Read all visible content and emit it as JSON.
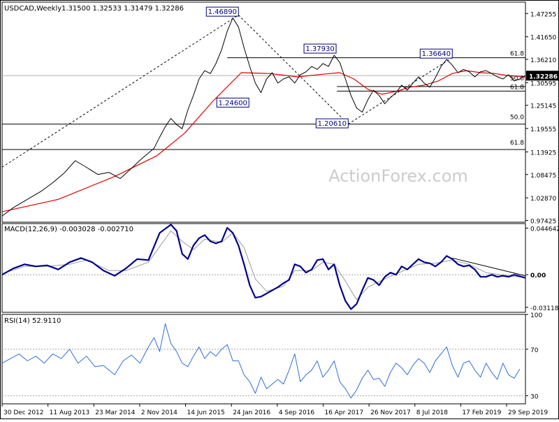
{
  "chart_data": {
    "type": "line",
    "symbol_header": "USDCAD,Weekly",
    "ohlc_header": "1.31500 1.32533 1.31479 1.32286",
    "watermark": "ActionForex.com",
    "x_ticks": [
      "30 Dec 2012",
      "11 Aug 2013",
      "23 Mar 2014",
      "2 Nov 2014",
      "14 Jun 2015",
      "24 Jan 2016",
      "4 Sep 2016",
      "16 Apr 2017",
      "26 Nov 2017",
      "8 Jul 2018",
      "17 Feb 2019",
      "29 Sep 2019"
    ],
    "price_panel": {
      "ylim": [
        0.97,
        1.5
      ],
      "y_ticks": [
        "1.47255",
        "1.41650",
        "1.36210",
        "1.30595",
        "1.25145",
        "1.19555",
        "1.13925",
        "1.08475",
        "1.02870",
        "0.97425"
      ],
      "last_price": "1.32286",
      "close_path": [
        [
          0,
          0.985
        ],
        [
          4,
          1.005
        ],
        [
          9,
          1.025
        ],
        [
          14,
          1.045
        ],
        [
          18,
          1.065
        ],
        [
          22,
          1.088
        ],
        [
          26,
          1.118
        ],
        [
          30,
          1.102
        ],
        [
          34,
          1.085
        ],
        [
          38,
          1.09
        ],
        [
          42,
          1.075
        ],
        [
          46,
          1.1
        ],
        [
          50,
          1.125
        ],
        [
          54,
          1.148
        ],
        [
          56,
          1.175
        ],
        [
          58,
          1.2
        ],
        [
          60,
          1.22
        ],
        [
          62,
          1.205
        ],
        [
          64,
          1.195
        ],
        [
          66,
          1.24
        ],
        [
          68,
          1.275
        ],
        [
          70,
          1.315
        ],
        [
          72,
          1.335
        ],
        [
          74,
          1.328
        ],
        [
          76,
          1.352
        ],
        [
          78,
          1.385
        ],
        [
          80,
          1.43
        ],
        [
          82,
          1.462
        ],
        [
          84,
          1.44
        ],
        [
          86,
          1.39
        ],
        [
          88,
          1.345
        ],
        [
          90,
          1.305
        ],
        [
          92,
          1.282
        ],
        [
          94,
          1.315
        ],
        [
          96,
          1.33
        ],
        [
          98,
          1.305
        ],
        [
          100,
          1.315
        ],
        [
          102,
          1.32
        ],
        [
          104,
          1.305
        ],
        [
          106,
          1.325
        ],
        [
          108,
          1.332
        ],
        [
          110,
          1.345
        ],
        [
          112,
          1.338
        ],
        [
          114,
          1.352
        ],
        [
          116,
          1.345
        ],
        [
          118,
          1.372
        ],
        [
          120,
          1.355
        ],
        [
          122,
          1.315
        ],
        [
          124,
          1.275
        ],
        [
          126,
          1.245
        ],
        [
          128,
          1.235
        ],
        [
          130,
          1.265
        ],
        [
          132,
          1.288
        ],
        [
          134,
          1.275
        ],
        [
          136,
          1.255
        ],
        [
          138,
          1.27
        ],
        [
          140,
          1.282
        ],
        [
          142,
          1.3
        ],
        [
          144,
          1.288
        ],
        [
          146,
          1.305
        ],
        [
          148,
          1.32
        ],
        [
          150,
          1.305
        ],
        [
          152,
          1.295
        ],
        [
          154,
          1.318
        ],
        [
          156,
          1.345
        ],
        [
          158,
          1.362
        ],
        [
          160,
          1.348
        ],
        [
          162,
          1.33
        ],
        [
          164,
          1.338
        ],
        [
          166,
          1.332
        ],
        [
          168,
          1.32
        ],
        [
          170,
          1.332
        ],
        [
          172,
          1.335
        ],
        [
          174,
          1.328
        ],
        [
          176,
          1.32
        ],
        [
          178,
          1.315
        ],
        [
          180,
          1.325
        ],
        [
          182,
          1.31
        ],
        [
          184,
          1.315
        ],
        [
          186,
          1.323
        ]
      ],
      "ma_path": [
        [
          0,
          0.995
        ],
        [
          20,
          1.025
        ],
        [
          40,
          1.08
        ],
        [
          55,
          1.13
        ],
        [
          65,
          1.185
        ],
        [
          75,
          1.262
        ],
        [
          85,
          1.33
        ],
        [
          95,
          1.328
        ],
        [
          105,
          1.32
        ],
        [
          115,
          1.327
        ],
        [
          120,
          1.33
        ],
        [
          125,
          1.315
        ],
        [
          130,
          1.29
        ],
        [
          135,
          1.278
        ],
        [
          140,
          1.285
        ],
        [
          145,
          1.295
        ],
        [
          150,
          1.3
        ],
        [
          155,
          1.31
        ],
        [
          160,
          1.328
        ],
        [
          165,
          1.335
        ],
        [
          170,
          1.33
        ],
        [
          175,
          1.328
        ],
        [
          180,
          1.323
        ],
        [
          186,
          1.32
        ]
      ],
      "hlines": [
        {
          "price": 1.366,
          "x_from": 80
        },
        {
          "price": 1.2966,
          "x_from": 119
        },
        {
          "price": 1.2856,
          "x_from": 119
        },
        {
          "price": 1.2061,
          "x_from": 0
        },
        {
          "price": 1.145,
          "x_from": 0
        }
      ],
      "fib_labels": [
        {
          "text": "61.8",
          "price": 1.366
        },
        {
          "text": "50.0",
          "price": 1.3066
        },
        {
          "text": "61.8",
          "price": 1.2856
        },
        {
          "text": "50.0",
          "price": 1.2131
        },
        {
          "text": "61.8",
          "price": 1.152
        }
      ],
      "trendlines": [
        {
          "from": [
            0,
            1.1025
          ],
          "to": [
            84,
            1.4689
          ]
        },
        {
          "from": [
            84,
            1.4689
          ],
          "to": [
            123,
            1.2061
          ]
        },
        {
          "from": [
            123,
            1.2061
          ],
          "to": [
            160,
            1.3664
          ]
        }
      ],
      "callouts": [
        {
          "text": "1.46890",
          "x": 84,
          "price": 1.477,
          "anchor": "end"
        },
        {
          "text": "1.24600",
          "x": 82,
          "price": 1.258,
          "anchor": "middle"
        },
        {
          "text": "1.37930",
          "x": 113,
          "price": 1.388,
          "anchor": "middle"
        },
        {
          "text": "1.20610",
          "x": 123,
          "price": 1.208,
          "anchor": "end"
        },
        {
          "text": "1.36640",
          "x": 160,
          "price": 1.376,
          "anchor": "end"
        }
      ]
    },
    "macd_panel": {
      "label": "MACD(12,26,9) -0.003028 -0.002710",
      "ylim": [
        -0.036,
        0.049
      ],
      "y_ticks": [
        "0.044642",
        "0.00",
        "-0.031183"
      ],
      "zero_label": "0.00",
      "macd_path": [
        [
          0,
          0.0
        ],
        [
          4,
          0.006
        ],
        [
          8,
          0.01
        ],
        [
          12,
          0.008
        ],
        [
          16,
          0.009
        ],
        [
          20,
          0.005
        ],
        [
          24,
          0.012
        ],
        [
          28,
          0.016
        ],
        [
          32,
          0.012
        ],
        [
          36,
          0.004
        ],
        [
          40,
          -0.001
        ],
        [
          44,
          0.006
        ],
        [
          48,
          0.015
        ],
        [
          52,
          0.014
        ],
        [
          56,
          0.04
        ],
        [
          60,
          0.048
        ],
        [
          62,
          0.042
        ],
        [
          64,
          0.02
        ],
        [
          66,
          0.015
        ],
        [
          68,
          0.028
        ],
        [
          70,
          0.035
        ],
        [
          72,
          0.038
        ],
        [
          74,
          0.032
        ],
        [
          76,
          0.03
        ],
        [
          78,
          0.032
        ],
        [
          80,
          0.045
        ],
        [
          82,
          0.04
        ],
        [
          84,
          0.028
        ],
        [
          86,
          0.01
        ],
        [
          88,
          -0.01
        ],
        [
          90,
          -0.022
        ],
        [
          92,
          -0.021
        ],
        [
          94,
          -0.018
        ],
        [
          96,
          -0.015
        ],
        [
          98,
          -0.012
        ],
        [
          100,
          -0.008
        ],
        [
          102,
          -0.005
        ],
        [
          104,
          0.01
        ],
        [
          106,
          0.008
        ],
        [
          108,
          0.002
        ],
        [
          110,
          0.005
        ],
        [
          112,
          0.014
        ],
        [
          114,
          0.015
        ],
        [
          116,
          0.005
        ],
        [
          118,
          0.01
        ],
        [
          120,
          -0.01
        ],
        [
          122,
          -0.025
        ],
        [
          124,
          -0.033
        ],
        [
          126,
          -0.028
        ],
        [
          128,
          -0.015
        ],
        [
          130,
          -0.003
        ],
        [
          132,
          -0.005
        ],
        [
          134,
          -0.01
        ],
        [
          136,
          -0.002
        ],
        [
          138,
          0.002
        ],
        [
          140,
          0.0
        ],
        [
          142,
          0.008
        ],
        [
          144,
          0.005
        ],
        [
          146,
          0.01
        ],
        [
          148,
          0.015
        ],
        [
          150,
          0.012
        ],
        [
          152,
          0.011
        ],
        [
          154,
          0.008
        ],
        [
          156,
          0.012
        ],
        [
          158,
          0.018
        ],
        [
          160,
          0.015
        ],
        [
          162,
          0.01
        ],
        [
          164,
          0.008
        ],
        [
          166,
          0.009
        ],
        [
          168,
          0.005
        ],
        [
          170,
          -0.002
        ],
        [
          172,
          -0.002
        ],
        [
          174,
          0.0
        ],
        [
          176,
          -0.002
        ],
        [
          178,
          -0.001
        ],
        [
          180,
          -0.002
        ],
        [
          182,
          0.0
        ],
        [
          186,
          -0.003
        ]
      ],
      "signal_path": [
        [
          0,
          0.001
        ],
        [
          8,
          0.008
        ],
        [
          16,
          0.008
        ],
        [
          24,
          0.01
        ],
        [
          30,
          0.014
        ],
        [
          38,
          0.004
        ],
        [
          44,
          0.004
        ],
        [
          52,
          0.012
        ],
        [
          60,
          0.042
        ],
        [
          64,
          0.032
        ],
        [
          68,
          0.024
        ],
        [
          72,
          0.034
        ],
        [
          78,
          0.031
        ],
        [
          82,
          0.04
        ],
        [
          86,
          0.026
        ],
        [
          90,
          -0.004
        ],
        [
          94,
          -0.016
        ],
        [
          100,
          -0.011
        ],
        [
          104,
          0.004
        ],
        [
          110,
          0.004
        ],
        [
          114,
          0.012
        ],
        [
          118,
          0.01
        ],
        [
          122,
          -0.006
        ],
        [
          126,
          -0.024
        ],
        [
          130,
          -0.012
        ],
        [
          136,
          -0.004
        ],
        [
          142,
          0.003
        ],
        [
          148,
          0.01
        ],
        [
          154,
          0.011
        ],
        [
          160,
          0.014
        ],
        [
          166,
          0.01
        ],
        [
          172,
          0.002
        ],
        [
          180,
          -0.001
        ],
        [
          186,
          -0.0027
        ]
      ],
      "trendline": {
        "from": [
          160,
          0.016
        ],
        "to": [
          186,
          -0.001
        ]
      }
    },
    "rsi_panel": {
      "label": "RSI(14) 52.9110",
      "ylim": [
        23,
        100
      ],
      "y_ticks": [
        "100",
        "70",
        "30"
      ],
      "levels": [
        70,
        30
      ],
      "rsi_path": [
        [
          0,
          58
        ],
        [
          3,
          62
        ],
        [
          6,
          66
        ],
        [
          9,
          60
        ],
        [
          12,
          64
        ],
        [
          15,
          58
        ],
        [
          18,
          66
        ],
        [
          21,
          62
        ],
        [
          24,
          70
        ],
        [
          27,
          58
        ],
        [
          30,
          64
        ],
        [
          33,
          55
        ],
        [
          36,
          56
        ],
        [
          40,
          48
        ],
        [
          43,
          60
        ],
        [
          46,
          65
        ],
        [
          49,
          58
        ],
        [
          52,
          72
        ],
        [
          54,
          80
        ],
        [
          56,
          68
        ],
        [
          58,
          92
        ],
        [
          60,
          75
        ],
        [
          62,
          68
        ],
        [
          64,
          58
        ],
        [
          66,
          55
        ],
        [
          68,
          64
        ],
        [
          70,
          72
        ],
        [
          72,
          62
        ],
        [
          74,
          68
        ],
        [
          76,
          64
        ],
        [
          78,
          70
        ],
        [
          80,
          74
        ],
        [
          82,
          60
        ],
        [
          84,
          60
        ],
        [
          86,
          48
        ],
        [
          88,
          42
        ],
        [
          90,
          32
        ],
        [
          92,
          46
        ],
        [
          94,
          36
        ],
        [
          96,
          40
        ],
        [
          98,
          44
        ],
        [
          100,
          40
        ],
        [
          102,
          52
        ],
        [
          104,
          66
        ],
        [
          106,
          42
        ],
        [
          108,
          48
        ],
        [
          110,
          52
        ],
        [
          112,
          60
        ],
        [
          114,
          46
        ],
        [
          116,
          52
        ],
        [
          118,
          60
        ],
        [
          120,
          42
        ],
        [
          122,
          36
        ],
        [
          124,
          28
        ],
        [
          126,
          35
        ],
        [
          128,
          45
        ],
        [
          130,
          52
        ],
        [
          132,
          44
        ],
        [
          134,
          45
        ],
        [
          136,
          38
        ],
        [
          138,
          50
        ],
        [
          140,
          58
        ],
        [
          142,
          54
        ],
        [
          144,
          48
        ],
        [
          146,
          56
        ],
        [
          148,
          62
        ],
        [
          150,
          58
        ],
        [
          152,
          50
        ],
        [
          154,
          60
        ],
        [
          156,
          66
        ],
        [
          158,
          72
        ],
        [
          160,
          56
        ],
        [
          162,
          46
        ],
        [
          164,
          58
        ],
        [
          166,
          60
        ],
        [
          168,
          52
        ],
        [
          170,
          46
        ],
        [
          172,
          58
        ],
        [
          174,
          50
        ],
        [
          176,
          44
        ],
        [
          178,
          58
        ],
        [
          180,
          48
        ],
        [
          182,
          45
        ],
        [
          184,
          53
        ]
      ]
    },
    "colors": {
      "price_line": "#000000",
      "moving_average": "#e00000",
      "macd_line": "#00008b",
      "signal_line": "#9a9a9a",
      "rsi_line": "#2e6fd6",
      "grid_line": "#000000",
      "callout_border": "#000080",
      "callout_text": "#00008b",
      "level_line": "#a0a0a0",
      "watermark": "#cccccc",
      "last_price_bg": "#000000",
      "last_price_text": "#ffffff"
    }
  }
}
